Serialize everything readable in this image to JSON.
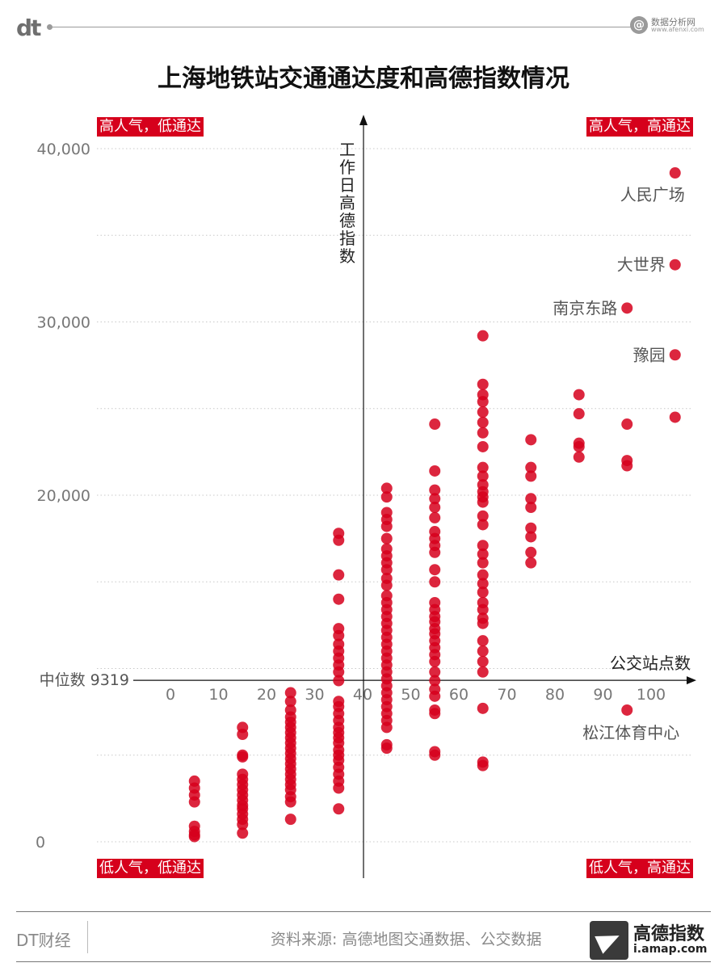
{
  "brand": {
    "logo": "dt",
    "afenxi_cn": "数据分析网",
    "afenxi_en": "www.afenxi.com"
  },
  "title": "上海地铁站交通通达度和高德指数情况",
  "quadrants": {
    "top_left": "高人气，低通达",
    "top_right": "高人气，高通达",
    "bottom_left": "低人气，低通达",
    "bottom_right": "低人气，高通达"
  },
  "footer": {
    "left": "DT财经",
    "source": "资料来源: 高德地图交通数据、公交数据",
    "amap_cn": "高德指数",
    "amap_en": "i.amap.com"
  },
  "colors": {
    "point": "#d6001c",
    "quadrant_bg": "#d6001c",
    "grid": "#cccccc",
    "axis": "#111111"
  },
  "chart_data": {
    "type": "scatter",
    "title": "上海地铁站交通通达度和高德指数情况",
    "xlabel": "公交站点数",
    "ylabel": "工作日高德指数",
    "median_label": "中位数 9319",
    "median_y": 9319,
    "xlim": [
      -5,
      108
    ],
    "ylim": [
      0,
      40000
    ],
    "y_ticks": [
      0,
      10000,
      20000,
      30000,
      40000
    ],
    "y_tick_labels": [
      "0",
      "",
      "20,000",
      "30,000",
      "40,000"
    ],
    "x_ticks": [
      0,
      10,
      20,
      30,
      40,
      50,
      60,
      70,
      80,
      90,
      100
    ],
    "x_tick_labels": [
      "0",
      "10",
      "20",
      "30",
      "40",
      "50",
      "60",
      "70",
      "80",
      "90",
      "100"
    ],
    "grid": true,
    "annotations": [
      {
        "label": "人民广场",
        "x": 105,
        "y": 38600
      },
      {
        "label": "大世界",
        "x": 105,
        "y": 33300
      },
      {
        "label": "南京东路",
        "x": 95,
        "y": 30800
      },
      {
        "label": "豫园",
        "x": 105,
        "y": 28100
      },
      {
        "label": "松江体育中心",
        "x": 95,
        "y": 7600
      }
    ],
    "series": [
      {
        "points": [
          [
            5,
            3500
          ],
          [
            5,
            3100
          ],
          [
            5,
            2700
          ],
          [
            5,
            2300
          ],
          [
            5,
            900
          ],
          [
            5,
            600
          ],
          [
            5,
            400
          ],
          [
            5,
            300
          ],
          [
            15,
            6600
          ],
          [
            15,
            6200
          ],
          [
            15,
            5000
          ],
          [
            15,
            4900
          ],
          [
            15,
            3900
          ],
          [
            15,
            3600
          ],
          [
            15,
            3300
          ],
          [
            15,
            3000
          ],
          [
            15,
            2700
          ],
          [
            15,
            2400
          ],
          [
            15,
            2100
          ],
          [
            15,
            1900
          ],
          [
            15,
            1600
          ],
          [
            15,
            1300
          ],
          [
            15,
            1000
          ],
          [
            15,
            500
          ],
          [
            25,
            8600
          ],
          [
            25,
            8100
          ],
          [
            25,
            7600
          ],
          [
            25,
            7200
          ],
          [
            25,
            6900
          ],
          [
            25,
            6600
          ],
          [
            25,
            6300
          ],
          [
            25,
            6000
          ],
          [
            25,
            5700
          ],
          [
            25,
            5400
          ],
          [
            25,
            5100
          ],
          [
            25,
            4800
          ],
          [
            25,
            4500
          ],
          [
            25,
            4200
          ],
          [
            25,
            3900
          ],
          [
            25,
            3600
          ],
          [
            25,
            3300
          ],
          [
            25,
            3000
          ],
          [
            25,
            2600
          ],
          [
            25,
            2300
          ],
          [
            25,
            1300
          ],
          [
            35,
            17800
          ],
          [
            35,
            17400
          ],
          [
            35,
            15400
          ],
          [
            35,
            14000
          ],
          [
            35,
            12300
          ],
          [
            35,
            11900
          ],
          [
            35,
            11400
          ],
          [
            35,
            11000
          ],
          [
            35,
            10600
          ],
          [
            35,
            10200
          ],
          [
            35,
            9800
          ],
          [
            35,
            9300
          ],
          [
            35,
            8100
          ],
          [
            35,
            7800
          ],
          [
            35,
            7400
          ],
          [
            35,
            7000
          ],
          [
            35,
            6600
          ],
          [
            35,
            6300
          ],
          [
            35,
            6000
          ],
          [
            35,
            5700
          ],
          [
            35,
            5300
          ],
          [
            35,
            5000
          ],
          [
            35,
            4700
          ],
          [
            35,
            4300
          ],
          [
            35,
            3900
          ],
          [
            35,
            3500
          ],
          [
            35,
            3100
          ],
          [
            35,
            1900
          ],
          [
            45,
            20400
          ],
          [
            45,
            19900
          ],
          [
            45,
            19000
          ],
          [
            45,
            18600
          ],
          [
            45,
            18200
          ],
          [
            45,
            17500
          ],
          [
            45,
            16900
          ],
          [
            45,
            16500
          ],
          [
            45,
            16100
          ],
          [
            45,
            15700
          ],
          [
            45,
            15200
          ],
          [
            45,
            14800
          ],
          [
            45,
            14200
          ],
          [
            45,
            13800
          ],
          [
            45,
            13400
          ],
          [
            45,
            13000
          ],
          [
            45,
            12600
          ],
          [
            45,
            12200
          ],
          [
            45,
            11800
          ],
          [
            45,
            11400
          ],
          [
            45,
            11000
          ],
          [
            45,
            10600
          ],
          [
            45,
            10200
          ],
          [
            45,
            9800
          ],
          [
            45,
            9400
          ],
          [
            45,
            9000
          ],
          [
            45,
            8600
          ],
          [
            45,
            8200
          ],
          [
            45,
            7800
          ],
          [
            45,
            7400
          ],
          [
            45,
            7000
          ],
          [
            45,
            6600
          ],
          [
            45,
            5600
          ],
          [
            45,
            5400
          ],
          [
            55,
            24100
          ],
          [
            55,
            21400
          ],
          [
            55,
            20300
          ],
          [
            55,
            19800
          ],
          [
            55,
            19300
          ],
          [
            55,
            18700
          ],
          [
            55,
            17900
          ],
          [
            55,
            17500
          ],
          [
            55,
            17100
          ],
          [
            55,
            16700
          ],
          [
            55,
            15700
          ],
          [
            55,
            15000
          ],
          [
            55,
            13800
          ],
          [
            55,
            13400
          ],
          [
            55,
            13000
          ],
          [
            55,
            12700
          ],
          [
            55,
            12300
          ],
          [
            55,
            12000
          ],
          [
            55,
            11600
          ],
          [
            55,
            11200
          ],
          [
            55,
            10800
          ],
          [
            55,
            10400
          ],
          [
            55,
            9800
          ],
          [
            55,
            9300
          ],
          [
            55,
            8800
          ],
          [
            55,
            8400
          ],
          [
            55,
            7600
          ],
          [
            55,
            7400
          ],
          [
            55,
            5200
          ],
          [
            55,
            5000
          ],
          [
            65,
            29200
          ],
          [
            65,
            26400
          ],
          [
            65,
            25800
          ],
          [
            65,
            25400
          ],
          [
            65,
            24800
          ],
          [
            65,
            24200
          ],
          [
            65,
            23600
          ],
          [
            65,
            22800
          ],
          [
            65,
            21600
          ],
          [
            65,
            21100
          ],
          [
            65,
            20600
          ],
          [
            65,
            20200
          ],
          [
            65,
            19900
          ],
          [
            65,
            19600
          ],
          [
            65,
            18800
          ],
          [
            65,
            18300
          ],
          [
            65,
            17100
          ],
          [
            65,
            16600
          ],
          [
            65,
            16100
          ],
          [
            65,
            15400
          ],
          [
            65,
            14900
          ],
          [
            65,
            14400
          ],
          [
            65,
            13800
          ],
          [
            65,
            13400
          ],
          [
            65,
            12900
          ],
          [
            65,
            12600
          ],
          [
            65,
            11600
          ],
          [
            65,
            11000
          ],
          [
            65,
            10400
          ],
          [
            65,
            9800
          ],
          [
            65,
            7700
          ],
          [
            65,
            4600
          ],
          [
            65,
            4400
          ],
          [
            75,
            23200
          ],
          [
            75,
            21600
          ],
          [
            75,
            21100
          ],
          [
            75,
            19800
          ],
          [
            75,
            19300
          ],
          [
            75,
            18100
          ],
          [
            75,
            17600
          ],
          [
            75,
            16700
          ],
          [
            75,
            16100
          ],
          [
            85,
            25800
          ],
          [
            85,
            24700
          ],
          [
            85,
            23000
          ],
          [
            85,
            22800
          ],
          [
            85,
            22200
          ],
          [
            95,
            24100
          ],
          [
            95,
            22000
          ],
          [
            95,
            21700
          ],
          [
            95,
            30800
          ],
          [
            95,
            7600
          ],
          [
            105,
            38600
          ],
          [
            105,
            33300
          ],
          [
            105,
            28100
          ],
          [
            105,
            24500
          ]
        ]
      }
    ]
  }
}
